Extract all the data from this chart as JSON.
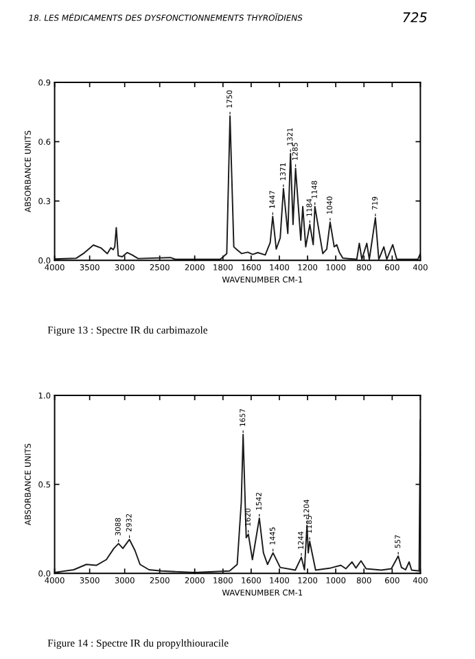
{
  "chart_data": [
    {
      "type": "line",
      "ylabel": "ABSORBANCE UNITS",
      "xlim": [
        4000,
        2000
      ],
      "ylim": [
        0,
        0.9
      ],
      "xticks": [
        4000,
        3500,
        3000,
        2500,
        2000
      ],
      "yticks": [
        {
          "value": 0,
          "label": "0.0"
        },
        0.3,
        0.6,
        0.9
      ],
      "grid": false,
      "marker": "none",
      "line_style": "solid",
      "series": [
        {
          "color": "#1a1a1a",
          "x": [
            4000,
            3695,
            3590,
            3447,
            3340,
            3248,
            3198,
            3163,
            3142,
            3120,
            3092,
            3035,
            2965,
            2894,
            2809,
            2348,
            2277,
            2000
          ],
          "values": [
            0.007,
            0.01,
            0.034,
            0.077,
            0.063,
            0.034,
            0.063,
            0.054,
            0.068,
            0.165,
            0.023,
            0.018,
            0.039,
            0.027,
            0.009,
            0.014,
            0.005,
            0.005
          ]
        }
      ],
      "annotations": [
        "18. LES MÉDICAMENTS DES DYSFONCTIONNEMENTS THYROÏDIENS",
        "725",
        "Figure 13 : Spectre IR du carbimazole"
      ]
    },
    {
      "type": "line",
      "xlabel": "WAVENUMBER CM-1",
      "xlim": [
        2000,
        400
      ],
      "ylim": [
        0,
        0.9
      ],
      "tick_labels": "x",
      "xticks": [
        {
          "value": 2000,
          "label": null
        },
        1800,
        1600,
        1400,
        1200,
        1000,
        800,
        600,
        400
      ],
      "yticks": [
        {
          "value": 0,
          "label": null
        },
        {
          "value": 0.3,
          "label": null
        },
        {
          "value": 0.6,
          "label": null
        },
        {
          "value": 0.9,
          "label": null
        }
      ],
      "grid": false,
      "marker": "none",
      "line_style": "solid",
      "series": [
        {
          "color": "#1a1a1a",
          "x": [
            2000,
            1819,
            1773,
            1750,
            1723,
            1695,
            1667,
            1624,
            1589,
            1553,
            1500,
            1465,
            1447,
            1422,
            1394,
            1371,
            1340,
            1321,
            1303,
            1285,
            1248,
            1234,
            1213,
            1184,
            1160,
            1148,
            1092,
            1064,
            1040,
            1011,
            993,
            975,
            950,
            851,
            833,
            815,
            780,
            762,
            719,
            695,
            659,
            638,
            596,
            567,
            418,
            400
          ],
          "values": [
            0.005,
            0.005,
            0.034,
            0.73,
            0.068,
            0.05,
            0.034,
            0.041,
            0.03,
            0.039,
            0.027,
            0.09,
            0.222,
            0.057,
            0.113,
            0.363,
            0.136,
            0.54,
            0.181,
            0.465,
            0.102,
            0.272,
            0.068,
            0.181,
            0.079,
            0.272,
            0.034,
            0.057,
            0.193,
            0.068,
            0.079,
            0.041,
            0.011,
            0.005,
            0.086,
            0.005,
            0.086,
            0.005,
            0.215,
            0.005,
            0.068,
            0.005,
            0.079,
            0.005,
            0.005,
            0.034
          ]
        }
      ],
      "annotations": [
        {
          "text": "1750",
          "x": 1750,
          "y": 0.73
        },
        {
          "text": "1447",
          "x": 1447,
          "y": 0.222
        },
        {
          "text": "1371",
          "x": 1371,
          "y": 0.363
        },
        {
          "text": "1321",
          "x": 1321,
          "y": 0.54
        },
        {
          "text": "1285",
          "x": 1285,
          "y": 0.465
        },
        {
          "text": "1184",
          "x": 1184,
          "y": 0.181
        },
        {
          "text": "1148",
          "x": 1148,
          "y": 0.272
        },
        {
          "text": "1040",
          "x": 1040,
          "y": 0.193
        },
        {
          "text": "719",
          "x": 719,
          "y": 0.215
        }
      ]
    },
    {
      "type": "line",
      "ylabel": "ABSORBANCE UNITS",
      "xlim": [
        4000,
        2000
      ],
      "ylim": [
        0,
        1.0
      ],
      "xticks": [
        4000,
        3500,
        3000,
        2500,
        2000
      ],
      "yticks": [
        {
          "value": 0,
          "label": "0.0"
        },
        0.5,
        {
          "value": 1.0,
          "label": "1.0"
        }
      ],
      "grid": false,
      "marker": "none",
      "line_style": "solid",
      "series": [
        {
          "color": "#1a1a1a",
          "x": [
            4000,
            3728,
            3548,
            3405,
            3262,
            3154,
            3088,
            3026,
            2932,
            2853,
            2781,
            2652,
            2473,
            2000
          ],
          "values": [
            0.005,
            0.02,
            0.05,
            0.045,
            0.077,
            0.14,
            0.167,
            0.14,
            0.19,
            0.128,
            0.05,
            0.02,
            0.013,
            0.005
          ]
        }
      ],
      "annotations": [
        "Figure 14 : Spectre IR du propylthiouracile",
        {
          "text": "3088",
          "x": 3088,
          "y": 0.167
        },
        {
          "text": "2932",
          "x": 2932,
          "y": 0.19
        }
      ]
    },
    {
      "type": "line",
      "xlabel": "WAVENUMBER CM-1",
      "xlim": [
        2000,
        400
      ],
      "ylim": [
        0,
        1.0
      ],
      "tick_labels": "x",
      "xticks": [
        {
          "value": 2000,
          "label": null
        },
        1800,
        1600,
        1400,
        1200,
        1000,
        800,
        600,
        400
      ],
      "yticks": [
        {
          "value": 0,
          "label": null
        },
        {
          "value": 0.5,
          "label": null
        },
        {
          "value": 1.0,
          "label": null
        }
      ],
      "grid": false,
      "marker": "none",
      "line_style": "solid",
      "series": [
        {
          "color": "#1a1a1a",
          "x": [
            2000,
            1753,
            1699,
            1670,
            1657,
            1635,
            1620,
            1591,
            1542,
            1513,
            1484,
            1445,
            1394,
            1287,
            1244,
            1222,
            1204,
            1195,
            1185,
            1143,
            1036,
            964,
            928,
            885,
            857,
            821,
            785,
            677,
            606,
            557,
            534,
            505,
            480,
            462,
            409,
            400
          ],
          "values": [
            0.005,
            0.013,
            0.05,
            0.4,
            0.78,
            0.2,
            0.22,
            0.077,
            0.31,
            0.115,
            0.05,
            0.115,
            0.033,
            0.018,
            0.09,
            0.02,
            0.27,
            0.115,
            0.18,
            0.018,
            0.03,
            0.045,
            0.026,
            0.064,
            0.03,
            0.07,
            0.026,
            0.018,
            0.026,
            0.097,
            0.033,
            0.02,
            0.064,
            0.018,
            0.013,
            0.86
          ]
        }
      ],
      "annotations": [
        {
          "text": "1657",
          "x": 1657,
          "y": 0.78
        },
        {
          "text": "1620",
          "x": 1620,
          "y": 0.22
        },
        {
          "text": "1542",
          "x": 1542,
          "y": 0.31
        },
        {
          "text": "1445",
          "x": 1445,
          "y": 0.115
        },
        {
          "text": "1244",
          "x": 1244,
          "y": 0.09
        },
        {
          "text": "1204",
          "x": 1204,
          "y": 0.27
        },
        {
          "text": "1185",
          "x": 1185,
          "y": 0.18
        },
        {
          "text": "557",
          "x": 557,
          "y": 0.097
        }
      ]
    }
  ]
}
